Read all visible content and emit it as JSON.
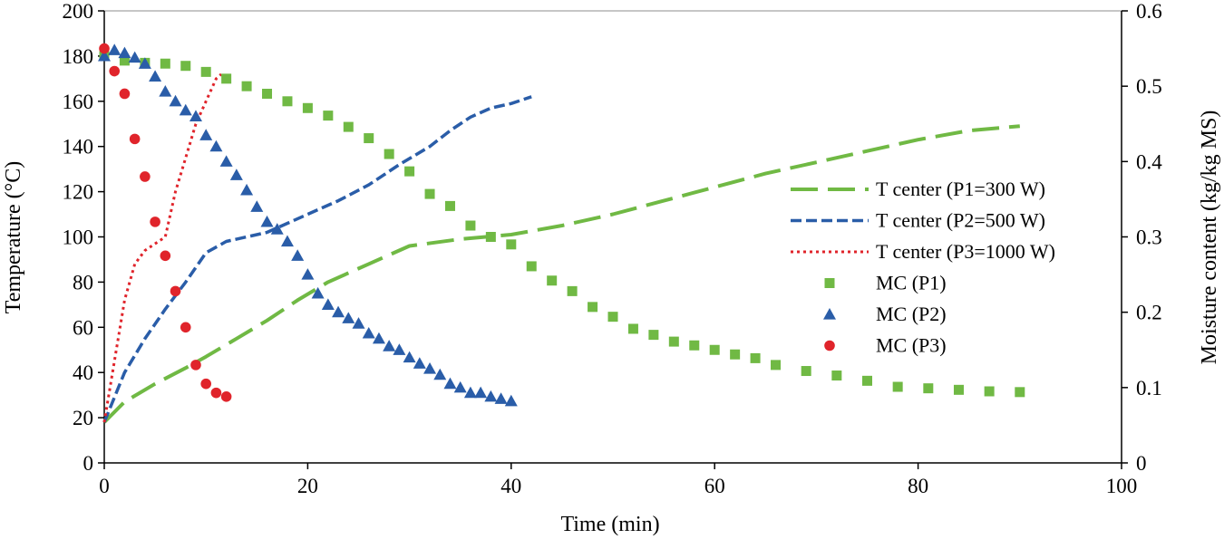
{
  "chart_data": {
    "type": "line",
    "title": "",
    "xlabel": "Time (min)",
    "ylabel": "Temperature (°C)",
    "y2label": "Moisture content (kg/kg MS)",
    "xlim": [
      0,
      100
    ],
    "ylim": [
      0,
      200
    ],
    "y2lim": [
      0,
      0.6
    ],
    "x_ticks": [
      0,
      20,
      40,
      60,
      80,
      100
    ],
    "y_ticks": [
      0,
      20,
      40,
      60,
      80,
      100,
      120,
      140,
      160,
      180,
      200
    ],
    "y2_ticks": [
      "0",
      "0.1",
      "0.2",
      "0.3",
      "0.4",
      "0.5",
      "0.6"
    ],
    "y2_tick_values": [
      0,
      0.1,
      0.2,
      0.3,
      0.4,
      0.5,
      0.6
    ],
    "grid": false,
    "legend_position": "right",
    "series": [
      {
        "name": "T center (P1=300 W)",
        "kind": "line",
        "axis": "left",
        "color": "#70B944",
        "dash": "long-dash",
        "x": [
          0,
          2,
          5,
          8,
          10,
          13,
          16,
          19,
          22,
          26,
          30,
          35,
          40,
          45,
          50,
          55,
          60,
          65,
          70,
          75,
          80,
          85,
          90
        ],
        "y": [
          18,
          27,
          35,
          42,
          47,
          55,
          63,
          72,
          80,
          88,
          96,
          99,
          101,
          105,
          110,
          116,
          122,
          128,
          133,
          138,
          143,
          147,
          149
        ]
      },
      {
        "name": "T center (P2=500 W)",
        "kind": "line",
        "axis": "left",
        "color": "#2A5DA8",
        "dash": "short-dash",
        "x": [
          0,
          2,
          4,
          6,
          8,
          10,
          12,
          14,
          16,
          18,
          20,
          23,
          26,
          29,
          32,
          34,
          36,
          38,
          40,
          42
        ],
        "y": [
          18,
          40,
          55,
          68,
          80,
          93,
          98,
          100,
          102,
          106,
          110,
          116,
          123,
          132,
          140,
          147,
          153,
          157,
          159,
          162
        ]
      },
      {
        "name": "T center (P3=1000 W)",
        "kind": "line",
        "axis": "left",
        "color": "#E0242B",
        "dash": "dotted",
        "x": [
          0,
          1,
          2,
          3,
          4,
          5,
          6,
          7,
          8,
          9,
          10,
          11,
          11.5
        ],
        "y": [
          18,
          45,
          72,
          88,
          94,
          97,
          100,
          120,
          135,
          150,
          160,
          170,
          172
        ]
      },
      {
        "name": "MC (P1)",
        "kind": "scatter",
        "marker": "square",
        "axis": "right",
        "color": "#70B944",
        "x": [
          0,
          2,
          4,
          6,
          8,
          10,
          12,
          14,
          16,
          18,
          20,
          22,
          24,
          26,
          28,
          30,
          32,
          34,
          36,
          38,
          40,
          42,
          44,
          46,
          48,
          50,
          52,
          54,
          56,
          58,
          60,
          62,
          64,
          66,
          69,
          72,
          75,
          78,
          81,
          84,
          87,
          90
        ],
        "y": [
          0.54,
          0.534,
          0.531,
          0.53,
          0.527,
          0.519,
          0.51,
          0.5,
          0.49,
          0.48,
          0.471,
          0.461,
          0.446,
          0.431,
          0.41,
          0.387,
          0.357,
          0.341,
          0.315,
          0.3,
          0.29,
          0.261,
          0.242,
          0.228,
          0.207,
          0.194,
          0.178,
          0.17,
          0.161,
          0.156,
          0.15,
          0.144,
          0.139,
          0.13,
          0.122,
          0.116,
          0.109,
          0.101,
          0.099,
          0.097,
          0.095,
          0.094
        ]
      },
      {
        "name": "MC (P2)",
        "kind": "scatter",
        "marker": "triangle",
        "axis": "right",
        "color": "#2A5DA8",
        "x": [
          0,
          1,
          2,
          3,
          4,
          5,
          6,
          7,
          8,
          9,
          10,
          11,
          12,
          13,
          14,
          15,
          16,
          17,
          18,
          19,
          20,
          21,
          22,
          23,
          24,
          25,
          26,
          27,
          28,
          29,
          30,
          31,
          32,
          33,
          34,
          35,
          36,
          37,
          38,
          39,
          40
        ],
        "y": [
          0.54,
          0.548,
          0.544,
          0.538,
          0.53,
          0.513,
          0.493,
          0.48,
          0.468,
          0.46,
          0.435,
          0.42,
          0.4,
          0.382,
          0.362,
          0.34,
          0.32,
          0.31,
          0.294,
          0.275,
          0.25,
          0.225,
          0.21,
          0.2,
          0.192,
          0.185,
          0.172,
          0.165,
          0.155,
          0.15,
          0.14,
          0.132,
          0.125,
          0.117,
          0.105,
          0.1,
          0.093,
          0.093,
          0.088,
          0.085,
          0.082
        ]
      },
      {
        "name": "MC (P3)",
        "kind": "scatter",
        "marker": "circle",
        "axis": "right",
        "color": "#E0242B",
        "x": [
          0,
          1,
          2,
          3,
          4,
          5,
          6,
          7,
          8,
          9,
          10,
          11,
          12
        ],
        "y": [
          0.55,
          0.52,
          0.49,
          0.43,
          0.38,
          0.32,
          0.275,
          0.228,
          0.18,
          0.13,
          0.105,
          0.093,
          0.088
        ]
      }
    ]
  }
}
